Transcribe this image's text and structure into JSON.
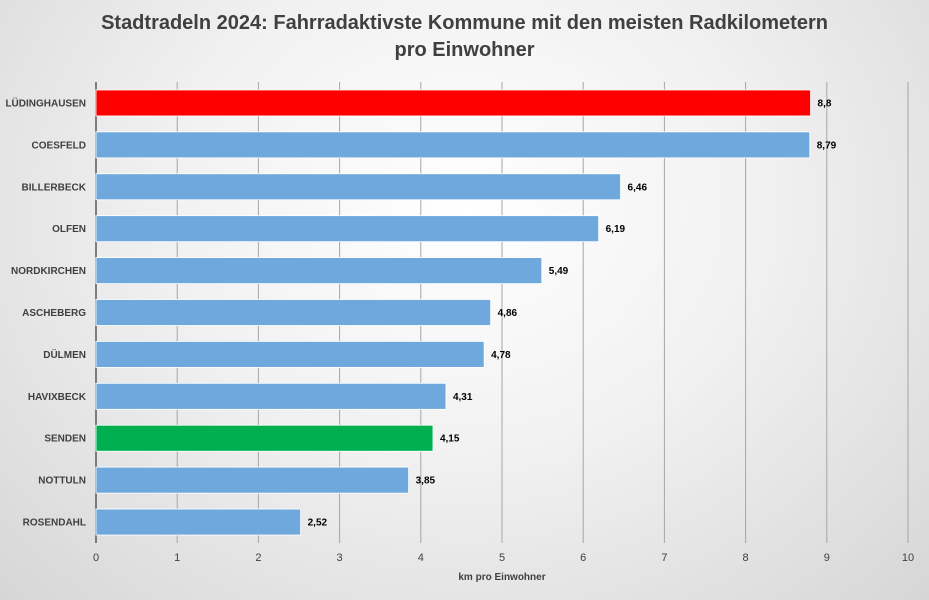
{
  "chart_data": {
    "type": "bar",
    "orientation": "horizontal",
    "title_lines": [
      "Stadtradeln 2024: Fahrradaktivste Kommune mit den meisten Radkilometern",
      "pro Einwohner"
    ],
    "xlabel": "km pro Einwohner",
    "ylabel": "",
    "xlim": [
      0,
      10
    ],
    "x_ticks": [
      "0",
      "1",
      "2",
      "3",
      "4",
      "5",
      "6",
      "7",
      "8",
      "9",
      "10"
    ],
    "grid": true,
    "categories": [
      "LÜDINGHAUSEN",
      "COESFELD",
      "BILLERBECK",
      "OLFEN",
      "NORDKIRCHEN",
      "ASCHEBERG",
      "DÜLMEN",
      "HAVIXBECK",
      "SENDEN",
      "NOTTULN",
      "ROSENDAHL"
    ],
    "values": [
      8.8,
      8.79,
      6.46,
      6.19,
      5.49,
      4.86,
      4.78,
      4.31,
      4.15,
      3.85,
      2.52
    ],
    "value_labels": [
      "8,8",
      "8,79",
      "6,46",
      "6,19",
      "5,49",
      "4,86",
      "4,78",
      "4,31",
      "4,15",
      "3,85",
      "2,52"
    ],
    "colors": [
      "#ff0000",
      "#6fa8dc",
      "#6fa8dc",
      "#6fa8dc",
      "#6fa8dc",
      "#6fa8dc",
      "#6fa8dc",
      "#6fa8dc",
      "#00b050",
      "#6fa8dc",
      "#6fa8dc"
    ],
    "legend": "none"
  }
}
